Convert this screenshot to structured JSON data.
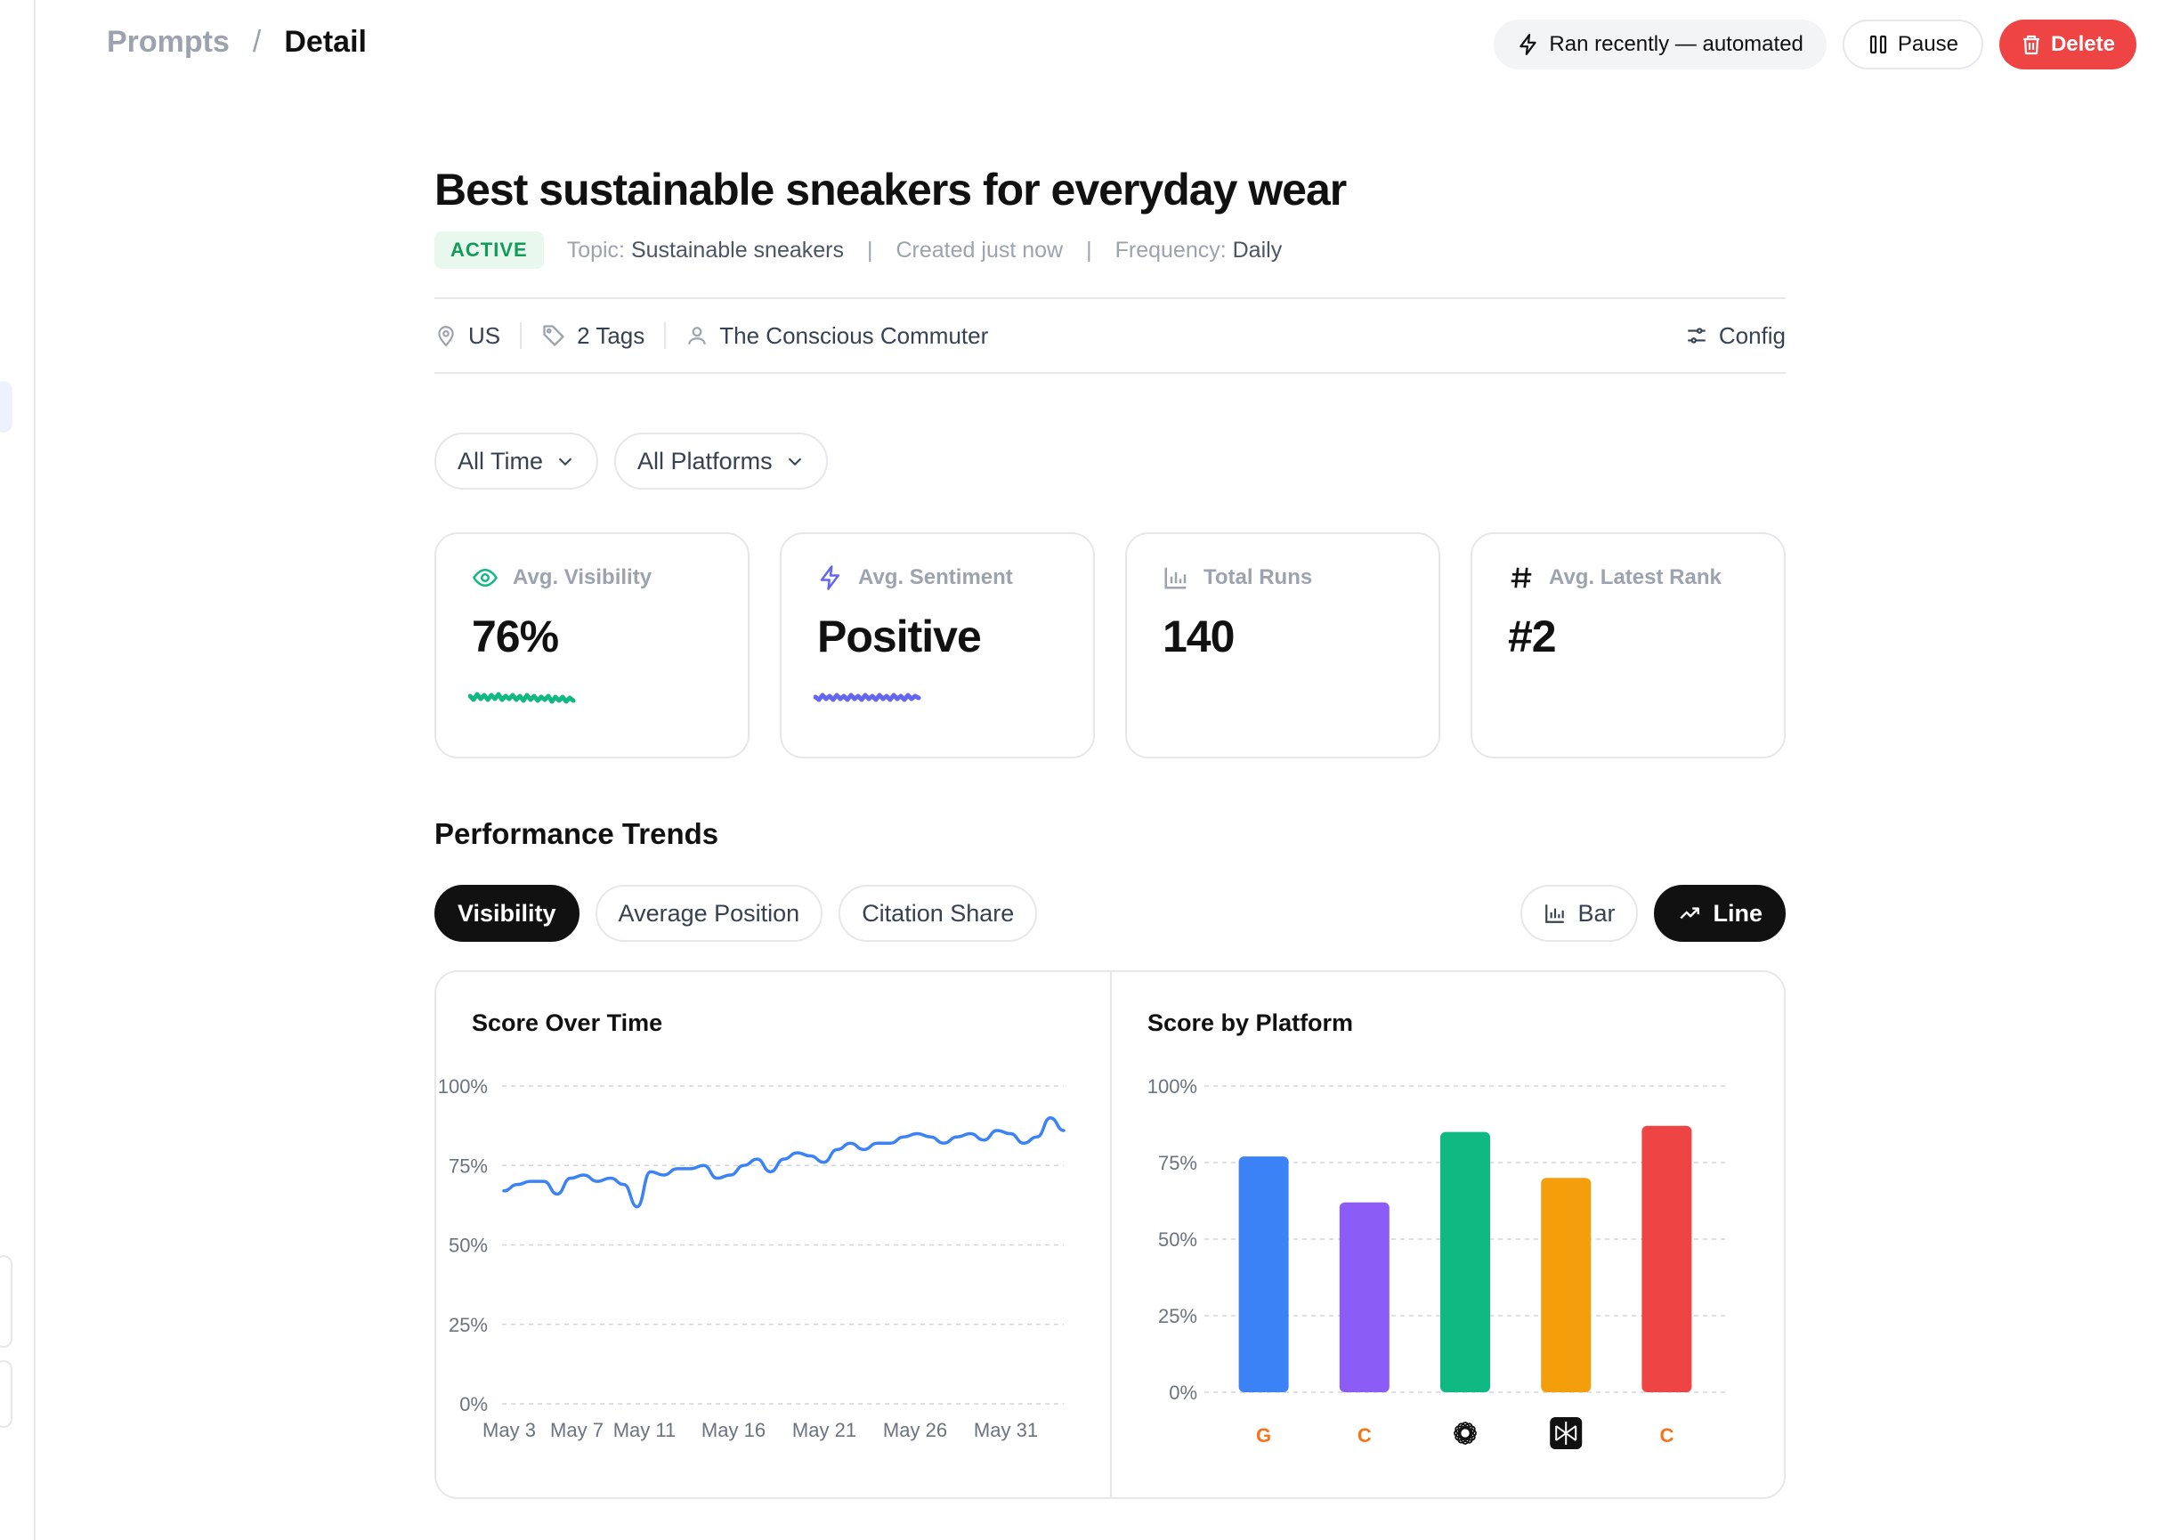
{
  "breadcrumb": {
    "parent": "Prompts",
    "separator": "/",
    "current": "Detail"
  },
  "header": {
    "status_label": "Ran recently — automated",
    "pause_label": "Pause",
    "delete_label": "Delete",
    "delete_color": "#ef4444"
  },
  "prompt": {
    "title": "Best sustainable sneakers for everyday wear",
    "status_badge": "ACTIVE",
    "topic_key": "Topic:",
    "topic_value": "Sustainable sneakers",
    "created": "Created just now",
    "frequency_key": "Frequency:",
    "frequency_value": "Daily",
    "separator": "|"
  },
  "info": {
    "location": "US",
    "tags": "2 Tags",
    "persona": "The Conscious Commuter",
    "config_label": "Config"
  },
  "filters": {
    "time": "All Time",
    "platforms": "All Platforms"
  },
  "metrics": [
    {
      "label": "Avg. Visibility",
      "value": "76%",
      "icon": "eye-icon",
      "color": "#10b981"
    },
    {
      "label": "Avg. Sentiment",
      "value": "Positive",
      "icon": "bolt-icon",
      "color": "#6366f1"
    },
    {
      "label": "Total Runs",
      "value": "140",
      "icon": "bar-chart-icon",
      "color": "#9ca3af"
    },
    {
      "label": "Avg. Latest Rank",
      "value": "#2",
      "icon": "hash-icon",
      "color": "#111111"
    }
  ],
  "trends": {
    "title": "Performance Trends",
    "tabs": [
      "Visibility",
      "Average Position",
      "Citation Share"
    ],
    "active_tab": "Visibility",
    "views": [
      "Bar",
      "Line"
    ],
    "active_view": "Line"
  },
  "chart_data": [
    {
      "type": "line",
      "title": "Score Over Time",
      "y_ticks": [
        "100%",
        "75%",
        "50%",
        "25%",
        "0%"
      ],
      "ylim": [
        0,
        100
      ],
      "x_ticks": [
        "May 3",
        "May 7",
        "May 11",
        "May 16",
        "May 21",
        "May 26",
        "May 31"
      ],
      "grid": "dashed",
      "series_color": "#3b82f6",
      "series": [
        {
          "values": [
            67,
            69,
            70,
            70,
            66,
            71,
            72,
            70,
            71,
            69,
            62,
            73,
            72,
            74,
            74,
            75,
            71,
            72,
            75,
            77,
            73,
            77,
            79,
            78,
            76,
            80,
            82,
            80,
            82,
            82,
            84,
            85,
            84,
            82,
            84,
            85,
            83,
            86,
            85,
            82,
            84,
            90,
            86
          ]
        }
      ]
    },
    {
      "type": "bar",
      "title": "Score by Platform",
      "y_ticks": [
        "100%",
        "75%",
        "50%",
        "25%",
        "0%"
      ],
      "ylim": [
        0,
        100
      ],
      "grid": "dashed",
      "categories": [
        "G",
        "C",
        "chatgpt-logo-icon",
        "perplexity-logo-icon",
        "C"
      ],
      "values": [
        77,
        62,
        85,
        70,
        87
      ],
      "colors": [
        "#3b82f6",
        "#8b5cf6",
        "#10b981",
        "#f59e0b",
        "#ef4444"
      ],
      "label_color": "#f97316"
    }
  ]
}
